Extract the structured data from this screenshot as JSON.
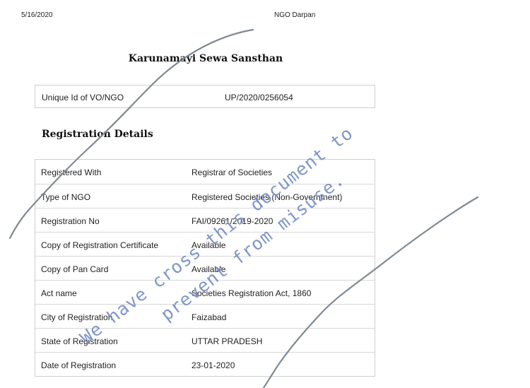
{
  "header": {
    "date": "5/16/2020",
    "title": "NGO Darpan"
  },
  "organization": {
    "name": "Karunamayi Sewa Sansthan"
  },
  "unique_id": {
    "label": "Unique Id of VO/NGO",
    "value": "UP/2020/0256054"
  },
  "registration": {
    "title": "Registration Details",
    "rows": [
      {
        "label": "Registered With",
        "value": "Registrar of Societies"
      },
      {
        "label": "Type of NGO",
        "value": "Registered Societies (Non-Government)"
      },
      {
        "label": "Registration No",
        "value": "FAI/09261/2019-2020"
      },
      {
        "label": "Copy of Registration Certificate",
        "value": "Available"
      },
      {
        "label": "Copy of Pan Card",
        "value": "Available"
      },
      {
        "label": "Act name",
        "value": "Societies Registration Act, 1860"
      },
      {
        "label": "City of Registration",
        "value": "Faizabad"
      },
      {
        "label": "State of Registration",
        "value": "UTTAR PRADESH"
      },
      {
        "label": "Date of Registration",
        "value": "23-01-2020"
      }
    ]
  },
  "watermark": {
    "line1": "We have cross this document to",
    "line2": "prevent from misuse.",
    "color": "#7f96c8"
  },
  "scribble_color": "#7f8a94"
}
